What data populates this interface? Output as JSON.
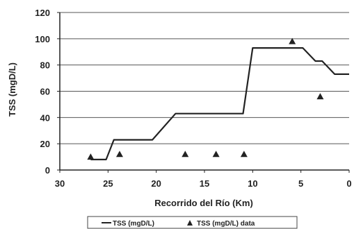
{
  "chart_data": {
    "type": "line",
    "xlabel": "Recorrido del Río  (Km)",
    "ylabel": "TSS  (mgD/L)",
    "xlim": [
      30,
      0
    ],
    "x_reversed": true,
    "ylim": [
      0,
      120
    ],
    "xticks": [
      30,
      25,
      20,
      15,
      10,
      5,
      0
    ],
    "yticks": [
      0,
      20,
      40,
      60,
      80,
      100,
      120
    ],
    "grid": "horizontal",
    "legend_position": "bottom",
    "series": [
      {
        "name": "TSS (mgD/L)",
        "style": "line",
        "color": "#222222",
        "x": [
          26.8,
          25.2,
          24.4,
          20.4,
          18.0,
          15.6,
          11.0,
          10.0,
          5.5,
          4.8,
          3.5,
          2.8,
          1.5,
          0
        ],
        "y": [
          8,
          8,
          23,
          23,
          43,
          43,
          43,
          93,
          93,
          93,
          83,
          83,
          73,
          73
        ]
      },
      {
        "name": "TSS (mgD/L) data",
        "style": "triangle",
        "color": "#222222",
        "x": [
          26.8,
          23.8,
          17.0,
          13.8,
          10.9,
          5.9,
          3.0
        ],
        "y": [
          10,
          12,
          12,
          12,
          12,
          98,
          56
        ]
      }
    ]
  }
}
